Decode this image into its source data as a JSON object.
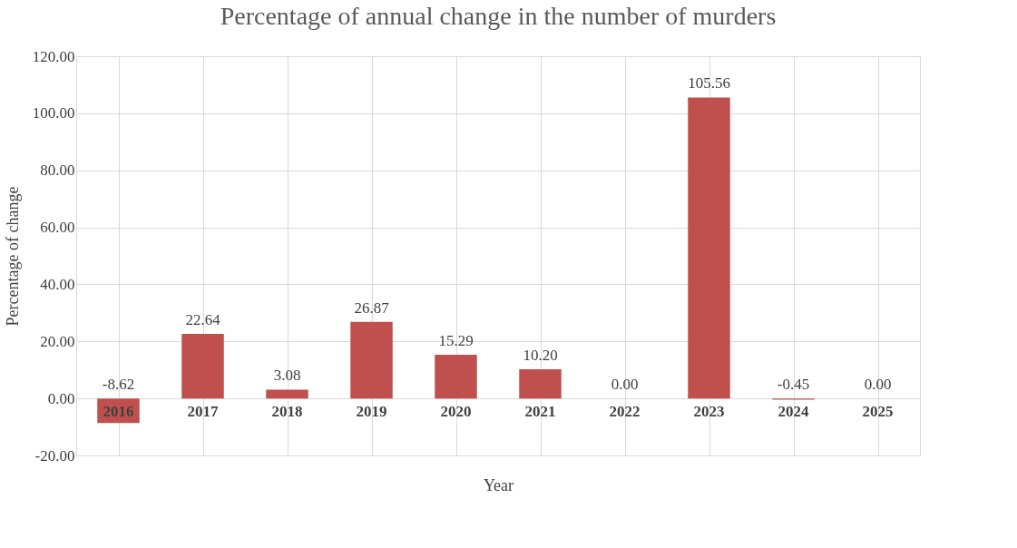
{
  "chart_data": {
    "type": "bar",
    "title": "Percentage of annual change in the number of murders",
    "xlabel": "Year",
    "ylabel": "Percentage of change",
    "categories": [
      "2016",
      "2017",
      "2018",
      "2019",
      "2020",
      "2021",
      "2022",
      "2023",
      "2024",
      "2025"
    ],
    "values": [
      -8.62,
      22.64,
      3.08,
      26.87,
      15.29,
      10.2,
      0,
      105.56,
      -0.45,
      0
    ],
    "value_labels": [
      "-8.62",
      "22.64",
      "3.08",
      "26.87",
      "15.29",
      "10.20",
      "0.00",
      "105.56",
      "-0.45",
      "0.00"
    ],
    "color": "#c0504d",
    "ylim": [
      -20,
      120
    ],
    "yticks": [
      {
        "value": -20,
        "label": "-20.00"
      },
      {
        "value": 0,
        "label": "0.00"
      },
      {
        "value": 20,
        "label": "20.00"
      },
      {
        "value": 40,
        "label": "40.00"
      },
      {
        "value": 60,
        "label": "60.00"
      },
      {
        "value": 80,
        "label": "80.00"
      },
      {
        "value": 100,
        "label": "100.00"
      },
      {
        "value": 120,
        "label": "120.00"
      }
    ],
    "grid": true
  }
}
